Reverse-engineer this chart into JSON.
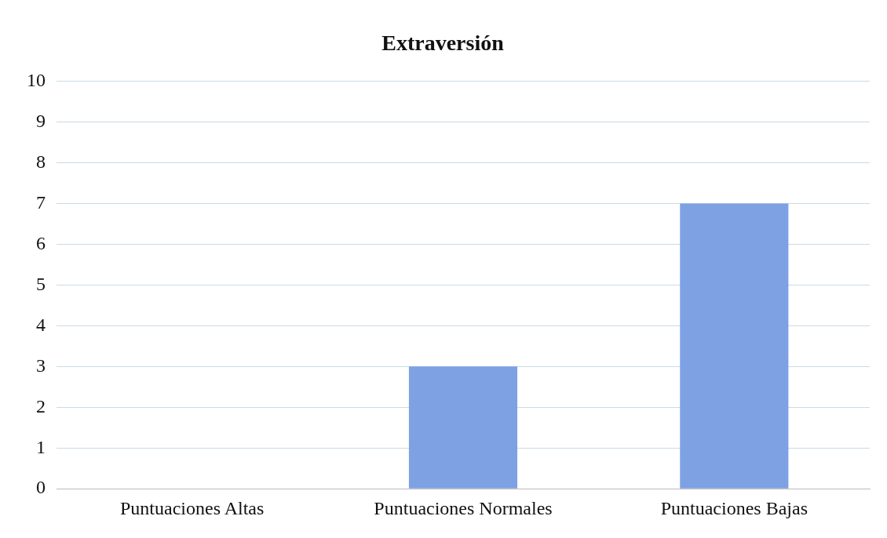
{
  "chart_data": {
    "type": "bar",
    "title": "Extraversión",
    "categories": [
      "Puntuaciones Altas",
      "Puntuaciones Normales",
      "Puntuaciones Bajas"
    ],
    "values": [
      0,
      3,
      7
    ],
    "color": "#7ea1e4",
    "ylim": [
      0,
      10
    ],
    "yticks": [
      0,
      1,
      2,
      3,
      4,
      5,
      6,
      7,
      8,
      9,
      10
    ],
    "grid": "y",
    "legend": false
  }
}
